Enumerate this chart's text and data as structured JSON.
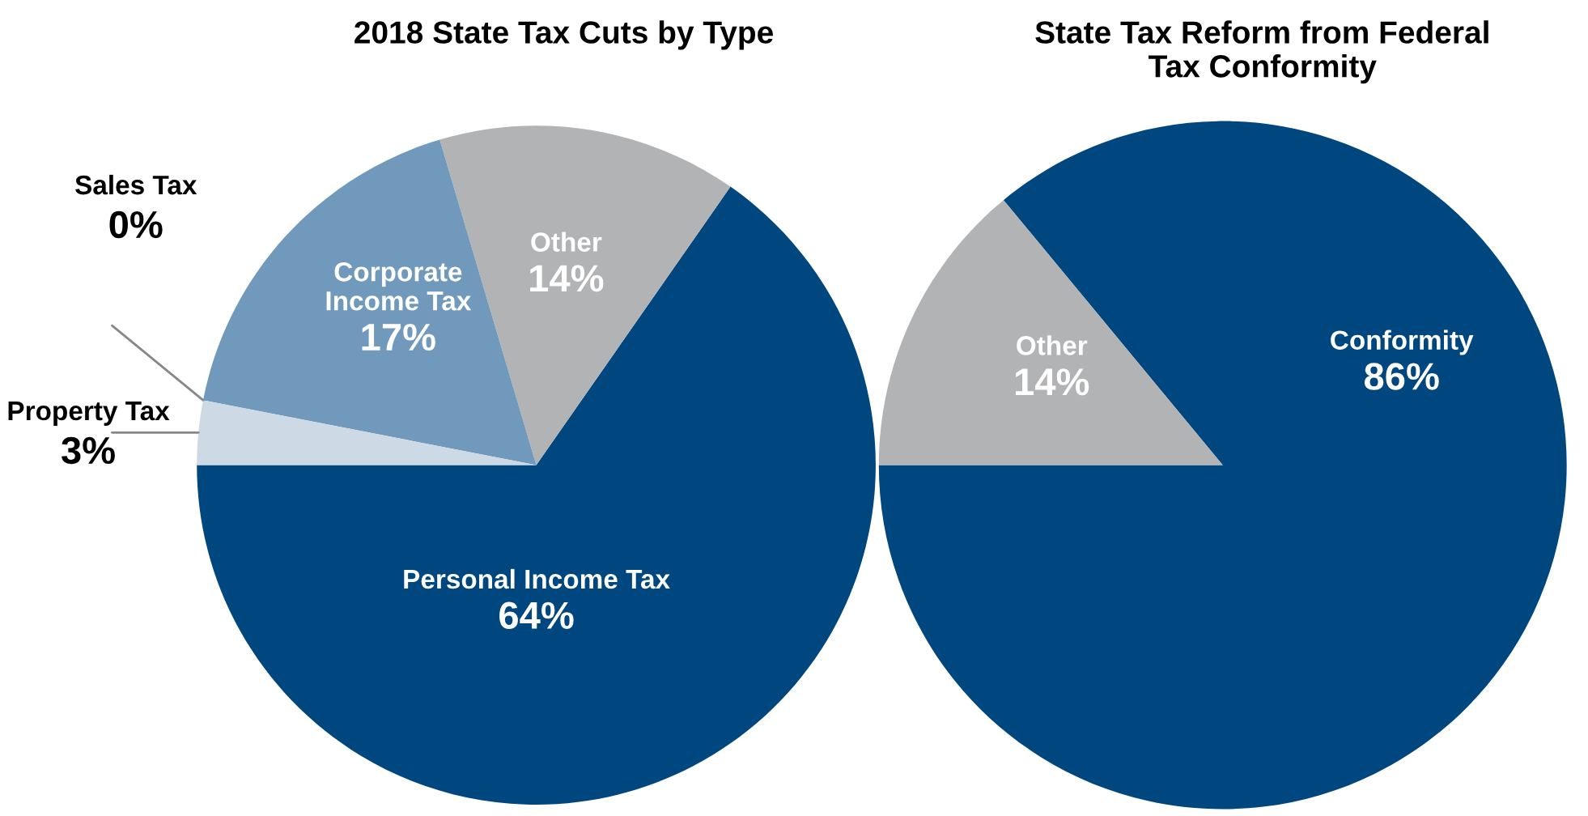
{
  "chart_data": [
    {
      "type": "pie",
      "title": "2018 State Tax Cuts by Type",
      "categories": [
        "Personal Income Tax",
        "Other",
        "Corporate\nIncome Tax",
        "Sales Tax",
        "Property Tax"
      ],
      "values": [
        64,
        14,
        17,
        0,
        3
      ],
      "value_labels": [
        "64%",
        "14%",
        "17%",
        "0%",
        "3%"
      ],
      "colors": [
        "#00467f",
        "#b1b3b5",
        "#7199bb",
        "#b9c8d8",
        "#cdd9e5"
      ]
    },
    {
      "type": "pie",
      "title": "State Tax Reform from Federal\nTax Conformity",
      "categories": [
        "Conformity",
        "Other"
      ],
      "values": [
        86,
        14
      ],
      "value_labels": [
        "86%",
        "14%"
      ],
      "colors": [
        "#00467f",
        "#b1b3b5"
      ]
    }
  ]
}
